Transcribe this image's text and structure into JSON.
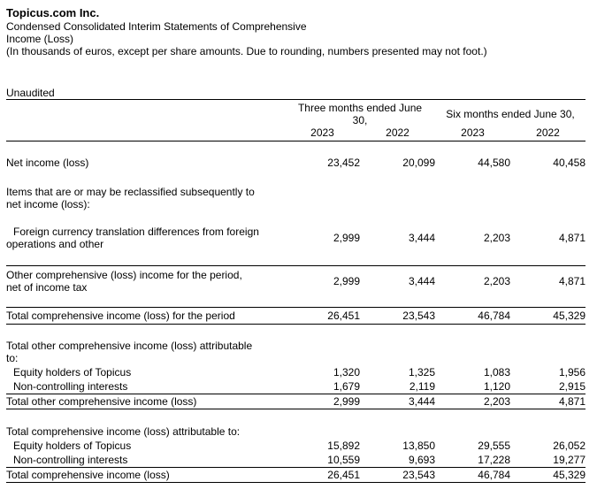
{
  "header": {
    "company": "Topicus.com Inc.",
    "statement_title": "Condensed Consolidated Interim Statements of Comprehensive\nIncome (Loss)",
    "units_note": "(In thousands of euros, except per share amounts. Due to rounding, numbers presented may not foot.)",
    "audit_status": "Unaudited"
  },
  "table": {
    "column_groups": [
      {
        "label": "Three months ended June\n30,"
      },
      {
        "label": "Six months ended June 30,"
      }
    ],
    "years": [
      "2023",
      "2022",
      "2023",
      "2022"
    ],
    "rows": [
      {
        "label": "Net income (loss)",
        "values": [
          "23,452",
          "20,099",
          "44,580",
          "40,458"
        ]
      },
      {
        "label": "Items that are or may be reclassified subsequently to\nnet income (loss):",
        "values": [
          "",
          "",
          "",
          ""
        ]
      },
      {
        "label": "Foreign currency translation differences from foreign\noperations and other",
        "values": [
          "2,999",
          "3,444",
          "2,203",
          "4,871"
        ]
      },
      {
        "label": "Other comprehensive (loss) income for the period,\nnet of income tax",
        "values": [
          "2,999",
          "3,444",
          "2,203",
          "4,871"
        ]
      },
      {
        "label": "Total comprehensive income (loss) for the period",
        "values": [
          "26,451",
          "23,543",
          "46,784",
          "45,329"
        ]
      },
      {
        "label": "Total other comprehensive income (loss) attributable\nto:",
        "values": [
          "",
          "",
          "",
          ""
        ]
      },
      {
        "label": "Equity holders of Topicus",
        "values": [
          "1,320",
          "1,325",
          "1,083",
          "1,956"
        ]
      },
      {
        "label": "Non-controlling interests",
        "values": [
          "1,679",
          "2,119",
          "1,120",
          "2,915"
        ]
      },
      {
        "label": "Total other comprehensive income (loss)",
        "values": [
          "2,999",
          "3,444",
          "2,203",
          "4,871"
        ]
      },
      {
        "label": "Total comprehensive income (loss) attributable to:",
        "values": [
          "",
          "",
          "",
          ""
        ]
      },
      {
        "label": "Equity holders of Topicus",
        "values": [
          "15,892",
          "13,850",
          "29,555",
          "26,052"
        ]
      },
      {
        "label": "Non-controlling interests",
        "values": [
          "10,559",
          "9,693",
          "17,228",
          "19,277"
        ]
      },
      {
        "label": "Total comprehensive income (loss)",
        "values": [
          "26,451",
          "23,543",
          "46,784",
          "45,329"
        ]
      }
    ]
  }
}
